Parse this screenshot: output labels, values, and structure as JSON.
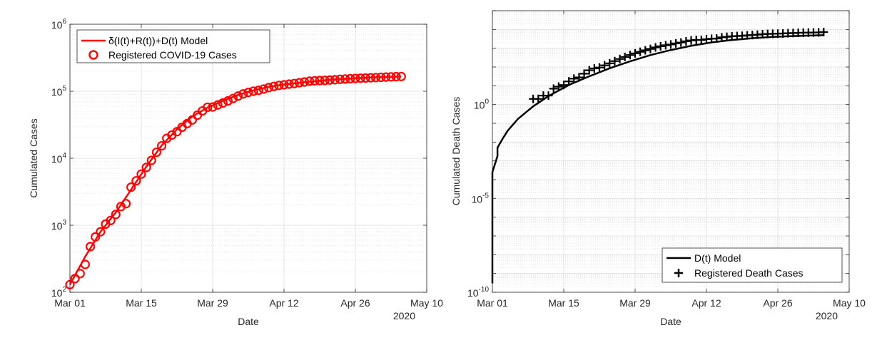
{
  "chart_data": [
    {
      "type": "scatter",
      "xlabel": "Date",
      "ylabel": "Cumulated Cases",
      "yscale": "log",
      "ylim": [
        100,
        1000000
      ],
      "xlim": [
        "2020-03-01",
        "2020-05-10"
      ],
      "x_ticks": [
        "Mar 01",
        "Mar 15",
        "Mar 29",
        "Apr 12",
        "Apr 26",
        "May 10"
      ],
      "x_tick_dates": [
        "2020-03-01",
        "2020-03-15",
        "2020-03-29",
        "2020-04-12",
        "2020-04-26",
        "2020-05-10"
      ],
      "x_secondary_label": "2020",
      "y_ticks": [
        {
          "base": "10",
          "exp": "2",
          "value": 100
        },
        {
          "base": "10",
          "exp": "3",
          "value": 1000
        },
        {
          "base": "10",
          "exp": "4",
          "value": 10000
        },
        {
          "base": "10",
          "exp": "5",
          "value": 100000
        },
        {
          "base": "10",
          "exp": "6",
          "value": 1000000
        }
      ],
      "grid": true,
      "minor_grid": true,
      "legend_position": "top-left",
      "series": [
        {
          "name": "δ(I(t)+R(t))+D(t) Model",
          "style": "line",
          "color": "#ff0000",
          "x": [
            "2020-03-01",
            "2020-03-04",
            "2020-03-07",
            "2020-03-10",
            "2020-03-13",
            "2020-03-16",
            "2020-03-19",
            "2020-03-22",
            "2020-03-25",
            "2020-03-28",
            "2020-03-31",
            "2020-04-03",
            "2020-04-06",
            "2020-04-09",
            "2020-04-12",
            "2020-04-15",
            "2020-04-18",
            "2020-04-21",
            "2020-04-24",
            "2020-04-27",
            "2020-04-30",
            "2020-05-03",
            "2020-05-05"
          ],
          "y": [
            130,
            340,
            800,
            1550,
            3400,
            7500,
            15500,
            27000,
            42000,
            57000,
            72000,
            88000,
            103000,
            116000,
            126000,
            134000,
            141000,
            148000,
            153000,
            158000,
            161000,
            164000,
            166000
          ]
        },
        {
          "name": "Registered COVID-19 Cases",
          "style": "circle",
          "color": "#ff0000",
          "x": [
            "2020-03-01",
            "2020-03-02",
            "2020-03-03",
            "2020-03-04",
            "2020-03-05",
            "2020-03-06",
            "2020-03-07",
            "2020-03-08",
            "2020-03-09",
            "2020-03-10",
            "2020-03-11",
            "2020-03-12",
            "2020-03-13",
            "2020-03-14",
            "2020-03-15",
            "2020-03-16",
            "2020-03-17",
            "2020-03-18",
            "2020-03-19",
            "2020-03-20",
            "2020-03-21",
            "2020-03-22",
            "2020-03-23",
            "2020-03-24",
            "2020-03-25",
            "2020-03-26",
            "2020-03-27",
            "2020-03-28",
            "2020-03-29",
            "2020-03-30",
            "2020-03-31",
            "2020-04-01",
            "2020-04-02",
            "2020-04-03",
            "2020-04-04",
            "2020-04-05",
            "2020-04-06",
            "2020-04-07",
            "2020-04-08",
            "2020-04-09",
            "2020-04-10",
            "2020-04-11",
            "2020-04-12",
            "2020-04-13",
            "2020-04-14",
            "2020-04-15",
            "2020-04-16",
            "2020-04-17",
            "2020-04-18",
            "2020-04-19",
            "2020-04-20",
            "2020-04-21",
            "2020-04-22",
            "2020-04-23",
            "2020-04-24",
            "2020-04-25",
            "2020-04-26",
            "2020-04-27",
            "2020-04-28",
            "2020-04-29",
            "2020-04-30",
            "2020-05-01",
            "2020-05-02",
            "2020-05-03",
            "2020-05-04",
            "2020-05-05"
          ],
          "y": [
            130,
            160,
            190,
            260,
            480,
            670,
            800,
            1040,
            1180,
            1450,
            1900,
            2100,
            3700,
            4600,
            5800,
            7300,
            9300,
            12300,
            15300,
            19800,
            22200,
            24900,
            29000,
            32900,
            37300,
            43900,
            50900,
            57700,
            58200,
            62400,
            66800,
            71800,
            77900,
            84800,
            91200,
            96100,
            100100,
            103200,
            107700,
            113300,
            118200,
            122200,
            124900,
            127700,
            130400,
            134000,
            137400,
            141400,
            143300,
            144400,
            145200,
            147100,
            148500,
            150600,
            152400,
            154200,
            155200,
            156300,
            157600,
            159100,
            160000,
            161500,
            162800,
            163900,
            165100,
            166000
          ]
        }
      ]
    },
    {
      "type": "scatter",
      "xlabel": "Date",
      "ylabel": "Cumulated Death Cases",
      "yscale": "log",
      "ylim": [
        1e-10,
        100000
      ],
      "xlim": [
        "2020-03-01",
        "2020-05-10"
      ],
      "x_ticks": [
        "Mar 01",
        "Mar 15",
        "Mar 29",
        "Apr 12",
        "Apr 26",
        "May 10"
      ],
      "x_tick_dates": [
        "2020-03-01",
        "2020-03-15",
        "2020-03-29",
        "2020-04-12",
        "2020-04-26",
        "2020-05-10"
      ],
      "x_secondary_label": "2020",
      "y_ticks": [
        {
          "base": "10",
          "exp": "-10",
          "value": 1e-10
        },
        {
          "base": "10",
          "exp": "-5",
          "value": 1e-05
        },
        {
          "base": "10",
          "exp": "0",
          "value": 1
        }
      ],
      "grid": true,
      "minor_grid": true,
      "legend_position": "bottom-right",
      "series": [
        {
          "name": "D(t) Model",
          "style": "line",
          "color": "#000000",
          "x": [
            "2020-03-01",
            "2020-03-01",
            "2020-03-01",
            "2020-03-01",
            "2020-03-02",
            "2020-03-02",
            "2020-03-03",
            "2020-03-04",
            "2020-03-06",
            "2020-03-09",
            "2020-03-12",
            "2020-03-16",
            "2020-03-20",
            "2020-03-24",
            "2020-03-28",
            "2020-04-01",
            "2020-04-05",
            "2020-04-09",
            "2020-04-13",
            "2020-04-17",
            "2020-04-21",
            "2020-04-25",
            "2020-04-29",
            "2020-05-03",
            "2020-05-05"
          ],
          "y": [
            3e-10,
            1e-07,
            1e-05,
            0.00025,
            0.0018,
            0.005,
            0.015,
            0.04,
            0.17,
            0.8,
            2.8,
            11,
            32,
            85,
            200,
            430,
            800,
            1350,
            2050,
            2750,
            3400,
            4000,
            4450,
            4800,
            4950
          ]
        },
        {
          "name": "Registered Death Cases",
          "style": "plus",
          "color": "#000000",
          "x": [
            "2020-03-09",
            "2020-03-10",
            "2020-03-11",
            "2020-03-12",
            "2020-03-13",
            "2020-03-14",
            "2020-03-15",
            "2020-03-16",
            "2020-03-17",
            "2020-03-18",
            "2020-03-19",
            "2020-03-20",
            "2020-03-21",
            "2020-03-22",
            "2020-03-23",
            "2020-03-24",
            "2020-03-25",
            "2020-03-26",
            "2020-03-27",
            "2020-03-28",
            "2020-03-29",
            "2020-03-30",
            "2020-03-31",
            "2020-04-01",
            "2020-04-02",
            "2020-04-03",
            "2020-04-04",
            "2020-04-05",
            "2020-04-06",
            "2020-04-07",
            "2020-04-08",
            "2020-04-09",
            "2020-04-10",
            "2020-04-11",
            "2020-04-12",
            "2020-04-13",
            "2020-04-14",
            "2020-04-15",
            "2020-04-16",
            "2020-04-17",
            "2020-04-18",
            "2020-04-19",
            "2020-04-20",
            "2020-04-21",
            "2020-04-22",
            "2020-04-23",
            "2020-04-24",
            "2020-04-25",
            "2020-04-26",
            "2020-04-27",
            "2020-04-28",
            "2020-04-29",
            "2020-04-30",
            "2020-05-01",
            "2020-05-02",
            "2020-05-03",
            "2020-05-04",
            "2020-05-05"
          ],
          "y": [
            2,
            2,
            3,
            3,
            7,
            9,
            11,
            17,
            24,
            28,
            44,
            67,
            84,
            94,
            123,
            157,
            206,
            267,
            342,
            433,
            533,
            645,
            775,
            920,
            1107,
            1275,
            1444,
            1584,
            1810,
            2016,
            2349,
            2607,
            2767,
            2736,
            3022,
            3194,
            3294,
            3804,
            4052,
            4352,
            4459,
            4586,
            4862,
            5033,
            5279,
            5575,
            5760,
            5877,
            5976,
            6126,
            6314,
            6467,
            6623,
            6736,
            6812,
            6866,
            6993,
            7275
          ]
        }
      ]
    }
  ]
}
